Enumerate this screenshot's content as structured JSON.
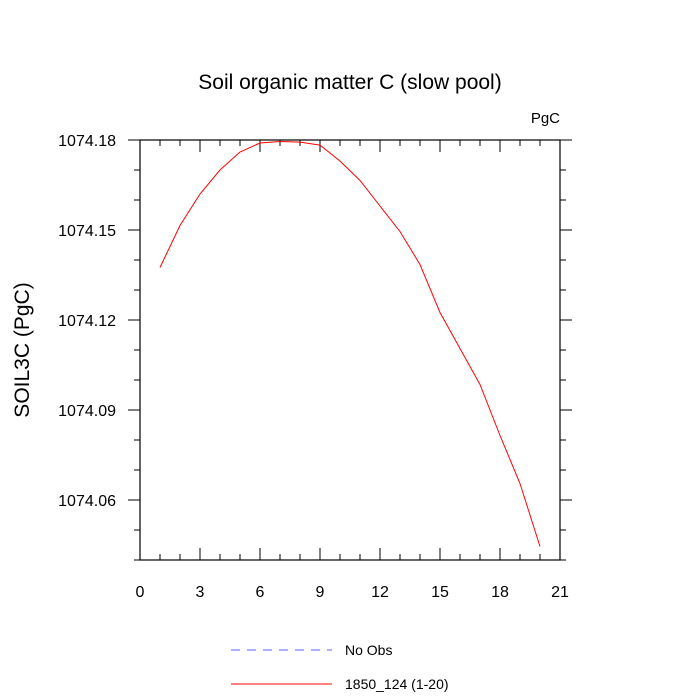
{
  "chart_data": {
    "type": "line",
    "title": "Soil organic matter C (slow pool)",
    "ylabel": "SOIL3C  (PgC)",
    "xlabel": "",
    "units_label": "PgC",
    "xlim": [
      0,
      21
    ],
    "ylim": [
      1074.04,
      1074.18
    ],
    "x_ticks": [
      0,
      3,
      6,
      9,
      12,
      15,
      18,
      21
    ],
    "x_tick_labels": [
      "0",
      "3",
      "6",
      "9",
      "12",
      "15",
      "18",
      "21"
    ],
    "y_ticks": [
      1074.06,
      1074.09,
      1074.12,
      1074.15,
      1074.18
    ],
    "y_tick_labels": [
      "1074.06",
      "1074.09",
      "1074.12",
      "1074.15",
      "1074.18"
    ],
    "x_minor_step": 1,
    "y_minor_step": 0.01,
    "grid": false,
    "legend_position": "bottom-center",
    "series": [
      {
        "name": "1850_124 (1-20)",
        "color": "#ff0000",
        "style": "solid",
        "x": [
          1,
          2,
          3,
          4,
          5,
          6,
          7,
          8,
          9,
          10,
          11,
          12,
          13,
          14,
          15,
          16,
          17,
          18,
          19,
          20
        ],
        "y": [
          1074.1375,
          1074.1515,
          1074.162,
          1074.17,
          1074.176,
          1074.179,
          1074.1795,
          1074.1793,
          1074.1783,
          1074.173,
          1074.1665,
          1074.158,
          1074.1495,
          1074.1385,
          1074.1225,
          1074.1105,
          1074.0985,
          1074.0815,
          1074.0655,
          1074.0445
        ]
      }
    ],
    "legend": [
      {
        "label": "No Obs",
        "color": "#6060ff",
        "style": "dashed"
      },
      {
        "label": "1850_124 (1-20)",
        "color": "#ff0000",
        "style": "solid"
      }
    ]
  }
}
